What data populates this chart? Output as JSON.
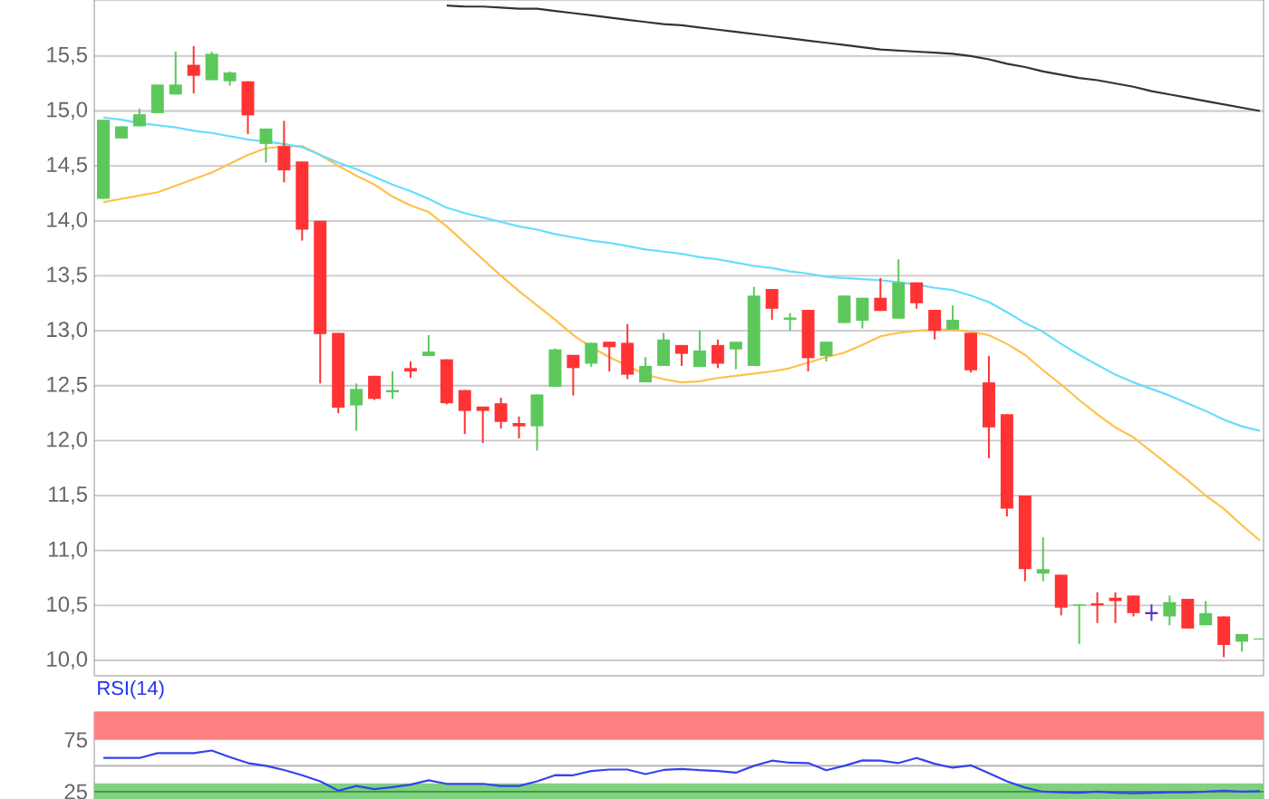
{
  "chart_data": [
    {
      "type": "candlestick",
      "tick_labels": "y",
      "grid": "y",
      "categories": [
        null,
        null,
        null,
        null,
        null,
        null,
        null,
        null,
        null,
        null,
        null,
        null,
        null,
        null,
        null,
        null,
        null,
        null,
        null,
        null,
        null,
        null,
        null,
        null,
        null,
        null,
        null,
        null,
        null,
        null,
        null,
        null,
        null,
        null,
        null,
        null,
        null,
        null,
        null,
        null,
        null,
        null,
        null,
        null,
        null,
        null,
        null,
        null,
        null,
        null,
        null,
        null,
        null,
        null,
        null,
        null,
        null,
        null,
        null,
        null,
        null,
        null,
        null,
        null,
        null
      ],
      "ohlc": [
        [
          14.2,
          14.92,
          14.2,
          14.92
        ],
        [
          14.75,
          14.86,
          14.75,
          14.86
        ],
        [
          14.86,
          15.02,
          14.86,
          14.97
        ],
        [
          14.98,
          15.24,
          14.98,
          15.24
        ],
        [
          15.15,
          15.54,
          15.15,
          15.24
        ],
        [
          15.42,
          15.59,
          15.16,
          15.32
        ],
        [
          15.28,
          15.54,
          15.28,
          15.52
        ],
        [
          15.27,
          15.36,
          15.23,
          15.35
        ],
        [
          15.27,
          15.27,
          14.79,
          14.96
        ],
        [
          14.7,
          14.84,
          14.53,
          14.84
        ],
        [
          14.68,
          14.91,
          14.35,
          14.46
        ],
        [
          14.54,
          14.54,
          13.82,
          13.92
        ],
        [
          14.0,
          14.0,
          12.52,
          12.97
        ],
        [
          12.98,
          12.98,
          12.25,
          12.3
        ],
        [
          12.32,
          12.52,
          12.09,
          12.47
        ],
        [
          12.59,
          12.59,
          12.37,
          12.38
        ],
        [
          12.44,
          12.63,
          12.38,
          12.46
        ],
        [
          12.66,
          12.72,
          12.57,
          12.63
        ],
        [
          12.77,
          12.96,
          12.77,
          12.81
        ],
        [
          12.74,
          12.74,
          12.33,
          12.34
        ],
        [
          12.46,
          12.46,
          12.06,
          12.27
        ],
        [
          12.31,
          12.31,
          11.98,
          12.27
        ],
        [
          12.34,
          12.39,
          12.11,
          12.17
        ],
        [
          12.16,
          12.22,
          12.02,
          12.13
        ],
        [
          12.13,
          12.42,
          11.91,
          12.42
        ],
        [
          12.49,
          12.84,
          12.49,
          12.83
        ],
        [
          12.78,
          12.78,
          12.41,
          12.66
        ],
        [
          12.7,
          12.89,
          12.67,
          12.89
        ],
        [
          12.9,
          12.9,
          12.63,
          12.85
        ],
        [
          12.89,
          13.06,
          12.56,
          12.6
        ],
        [
          12.53,
          12.76,
          12.53,
          12.68
        ],
        [
          12.68,
          12.98,
          12.68,
          12.92
        ],
        [
          12.87,
          12.87,
          12.68,
          12.79
        ],
        [
          12.67,
          13.0,
          12.67,
          12.82
        ],
        [
          12.87,
          12.92,
          12.66,
          12.7
        ],
        [
          12.83,
          12.9,
          12.65,
          12.9
        ],
        [
          12.68,
          13.4,
          12.68,
          13.32
        ],
        [
          13.38,
          13.38,
          13.1,
          13.2
        ],
        [
          13.1,
          13.16,
          13.0,
          13.12
        ],
        [
          13.19,
          13.19,
          12.63,
          12.75
        ],
        [
          12.77,
          12.9,
          12.72,
          12.9
        ],
        [
          13.07,
          13.32,
          13.07,
          13.32
        ],
        [
          13.09,
          13.3,
          13.02,
          13.3
        ],
        [
          13.3,
          13.48,
          13.18,
          13.18
        ],
        [
          13.11,
          13.65,
          13.11,
          13.44
        ],
        [
          13.44,
          13.44,
          13.2,
          13.25
        ],
        [
          13.19,
          13.19,
          12.92,
          13.0
        ],
        [
          13.01,
          13.23,
          13.01,
          13.1
        ],
        [
          12.98,
          12.98,
          12.62,
          12.64
        ],
        [
          12.53,
          12.77,
          11.84,
          12.12
        ],
        [
          12.24,
          12.24,
          11.31,
          11.38
        ],
        [
          11.5,
          11.5,
          10.72,
          10.83
        ],
        [
          10.79,
          11.12,
          10.72,
          10.83
        ],
        [
          10.78,
          10.78,
          10.41,
          10.48
        ],
        [
          10.5,
          10.51,
          10.15,
          10.51
        ],
        [
          10.52,
          10.62,
          10.34,
          10.5
        ],
        [
          10.57,
          10.62,
          10.34,
          10.54
        ],
        [
          10.59,
          10.59,
          10.4,
          10.43
        ],
        [
          10.43,
          10.51,
          10.36,
          10.43
        ],
        [
          10.4,
          10.59,
          10.32,
          10.53
        ],
        [
          10.56,
          10.56,
          10.29,
          10.29
        ],
        [
          10.32,
          10.54,
          10.32,
          10.43
        ],
        [
          10.4,
          10.4,
          10.03,
          10.14
        ],
        [
          10.17,
          10.24,
          10.08,
          10.24
        ],
        [
          10.19,
          10.2,
          10.19,
          10.2
        ]
      ],
      "colors": [
        "#5cc85c",
        "#5cc85c",
        "#5cc85c",
        "#5cc85c",
        "#5cc85c",
        "#ff3333",
        "#5cc85c",
        "#5cc85c",
        "#ff3333",
        "#5cc85c",
        "#ff3333",
        "#ff3333",
        "#ff3333",
        "#ff3333",
        "#5cc85c",
        "#ff3333",
        "#5cc85c",
        "#ff3333",
        "#5cc85c",
        "#ff3333",
        "#ff3333",
        "#ff3333",
        "#ff3333",
        "#ff3333",
        "#5cc85c",
        "#5cc85c",
        "#ff3333",
        "#5cc85c",
        "#ff3333",
        "#ff3333",
        "#5cc85c",
        "#5cc85c",
        "#ff3333",
        "#5cc85c",
        "#ff3333",
        "#5cc85c",
        "#5cc85c",
        "#ff3333",
        "#5cc85c",
        "#ff3333",
        "#5cc85c",
        "#5cc85c",
        "#5cc85c",
        "#ff3333",
        "#5cc85c",
        "#ff3333",
        "#ff3333",
        "#5cc85c",
        "#ff3333",
        "#ff3333",
        "#ff3333",
        "#ff3333",
        "#5cc85c",
        "#ff3333",
        "#5cc85c",
        "#ff3333",
        "#ff3333",
        "#ff3333",
        "#5533cc",
        "#5cc85c",
        "#ff3333",
        "#5cc85c",
        "#ff3333",
        "#5cc85c",
        "#5cc85c"
      ],
      "series": [
        {
          "type": "line",
          "color": "#ffc04d",
          "values": [
            14.17,
            14.2,
            14.23,
            14.26,
            14.32,
            14.38,
            14.44,
            14.52,
            14.6,
            14.66,
            14.68,
            14.68,
            14.6,
            14.5,
            14.41,
            14.33,
            14.22,
            14.14,
            14.08,
            13.95,
            13.8,
            13.65,
            13.5,
            13.36,
            13.23,
            13.1,
            12.96,
            12.85,
            12.76,
            12.68,
            12.6,
            12.56,
            12.53,
            12.54,
            12.57,
            12.59,
            12.61,
            12.63,
            12.66,
            12.71,
            12.76,
            12.8,
            12.87,
            12.95,
            12.98,
            13.0,
            13.01,
            13.01,
            12.99,
            12.96,
            12.88,
            12.78,
            12.64,
            12.51,
            12.37,
            12.24,
            12.12,
            12.03,
            11.9,
            11.77,
            11.64,
            11.5,
            11.38,
            11.23,
            11.09
          ]
        },
        {
          "type": "line",
          "color": "#66ddff",
          "values": [
            14.94,
            14.92,
            14.89,
            14.87,
            14.85,
            14.82,
            14.8,
            14.77,
            14.74,
            14.72,
            14.7,
            14.67,
            14.6,
            14.53,
            14.47,
            14.4,
            14.33,
            14.27,
            14.2,
            14.12,
            14.07,
            14.03,
            13.99,
            13.95,
            13.92,
            13.88,
            13.85,
            13.82,
            13.8,
            13.77,
            13.74,
            13.72,
            13.7,
            13.67,
            13.65,
            13.62,
            13.59,
            13.57,
            13.54,
            13.52,
            13.49,
            13.48,
            13.47,
            13.46,
            13.44,
            13.42,
            13.39,
            13.37,
            13.32,
            13.26,
            13.17,
            13.07,
            12.99,
            12.88,
            12.78,
            12.69,
            12.6,
            12.53,
            12.47,
            12.41,
            12.34,
            12.27,
            12.19,
            12.13,
            12.09
          ]
        },
        {
          "type": "line",
          "color": "#333333",
          "values": [
            null,
            null,
            null,
            null,
            null,
            null,
            null,
            null,
            null,
            null,
            null,
            null,
            null,
            null,
            null,
            null,
            null,
            null,
            null,
            15.96,
            15.95,
            15.95,
            15.94,
            15.93,
            15.93,
            15.91,
            15.89,
            15.87,
            15.85,
            15.83,
            15.81,
            15.79,
            15.78,
            15.76,
            15.74,
            15.72,
            15.7,
            15.68,
            15.66,
            15.64,
            15.62,
            15.6,
            15.58,
            15.56,
            15.55,
            15.54,
            15.53,
            15.52,
            15.5,
            15.47,
            15.43,
            15.4,
            15.36,
            15.33,
            15.3,
            15.28,
            15.25,
            15.22,
            15.18,
            15.15,
            15.12,
            15.09,
            15.06,
            15.03,
            15.0
          ]
        }
      ],
      "ylim": [
        9.86,
        16.01
      ],
      "yticks": [
        {
          "value": 10.0,
          "label": "10,0"
        },
        {
          "value": 10.5,
          "label": "10,5"
        },
        {
          "value": 11.0,
          "label": "11,0"
        },
        {
          "value": 11.5,
          "label": "11,5"
        },
        {
          "value": 12.0,
          "label": "12,0"
        },
        {
          "value": 12.5,
          "label": "12,5"
        },
        {
          "value": 13.0,
          "label": "13,0"
        },
        {
          "value": 13.5,
          "label": "13,5"
        },
        {
          "value": 14.0,
          "label": "14,0"
        },
        {
          "value": 14.5,
          "label": "14,5"
        },
        {
          "value": 15.0,
          "label": "15,0"
        },
        {
          "value": 15.5,
          "label": "15,5"
        }
      ]
    },
    {
      "type": "line",
      "title": "RSI(14)",
      "tick_labels": "y",
      "categories": [
        null,
        null,
        null,
        null,
        null,
        null,
        null,
        null,
        null,
        null,
        null,
        null,
        null,
        null,
        null,
        null,
        null,
        null,
        null,
        null,
        null,
        null,
        null,
        null,
        null,
        null,
        null,
        null,
        null,
        null,
        null,
        null,
        null,
        null,
        null,
        null,
        null,
        null,
        null,
        null,
        null,
        null,
        null,
        null,
        null,
        null,
        null,
        null,
        null,
        null,
        null,
        null,
        null,
        null,
        null,
        null,
        null,
        null,
        null,
        null,
        null,
        null,
        null,
        null,
        null
      ],
      "series": [
        {
          "color": "#3344ee",
          "values": [
            57.6,
            57.6,
            57.6,
            62.3,
            62.3,
            62.3,
            64.8,
            58.5,
            52.7,
            50.0,
            46,
            41,
            35,
            26,
            30.5,
            27.5,
            29.5,
            31.9,
            36,
            32.6,
            32.6,
            32.6,
            30.5,
            30.5,
            35,
            41,
            40.9,
            45,
            46.4,
            46.4,
            42,
            46,
            47,
            45.8,
            45,
            43.4,
            50,
            55,
            53,
            52.7,
            45.8,
            50,
            55.3,
            55,
            52.7,
            57.6,
            52,
            48.2,
            50.5,
            43,
            35,
            29,
            25,
            24.5,
            24,
            25,
            24,
            23.5,
            24,
            24.5,
            24.5,
            25,
            26,
            25,
            25.5
          ]
        }
      ],
      "ylim": [
        18,
        102
      ],
      "yticks": [
        25,
        75
      ],
      "bands": [
        {
          "axis": "y",
          "from": 75,
          "to": 102,
          "color": "#ff8080"
        },
        {
          "axis": "y",
          "from": 18,
          "to": 33,
          "color": "#80d080"
        }
      ],
      "ref_lines": [
        {
          "axis": "y",
          "value": 50,
          "color": "#aaaaaa"
        },
        {
          "axis": "y",
          "value": 25,
          "color": "#339933"
        }
      ]
    }
  ]
}
